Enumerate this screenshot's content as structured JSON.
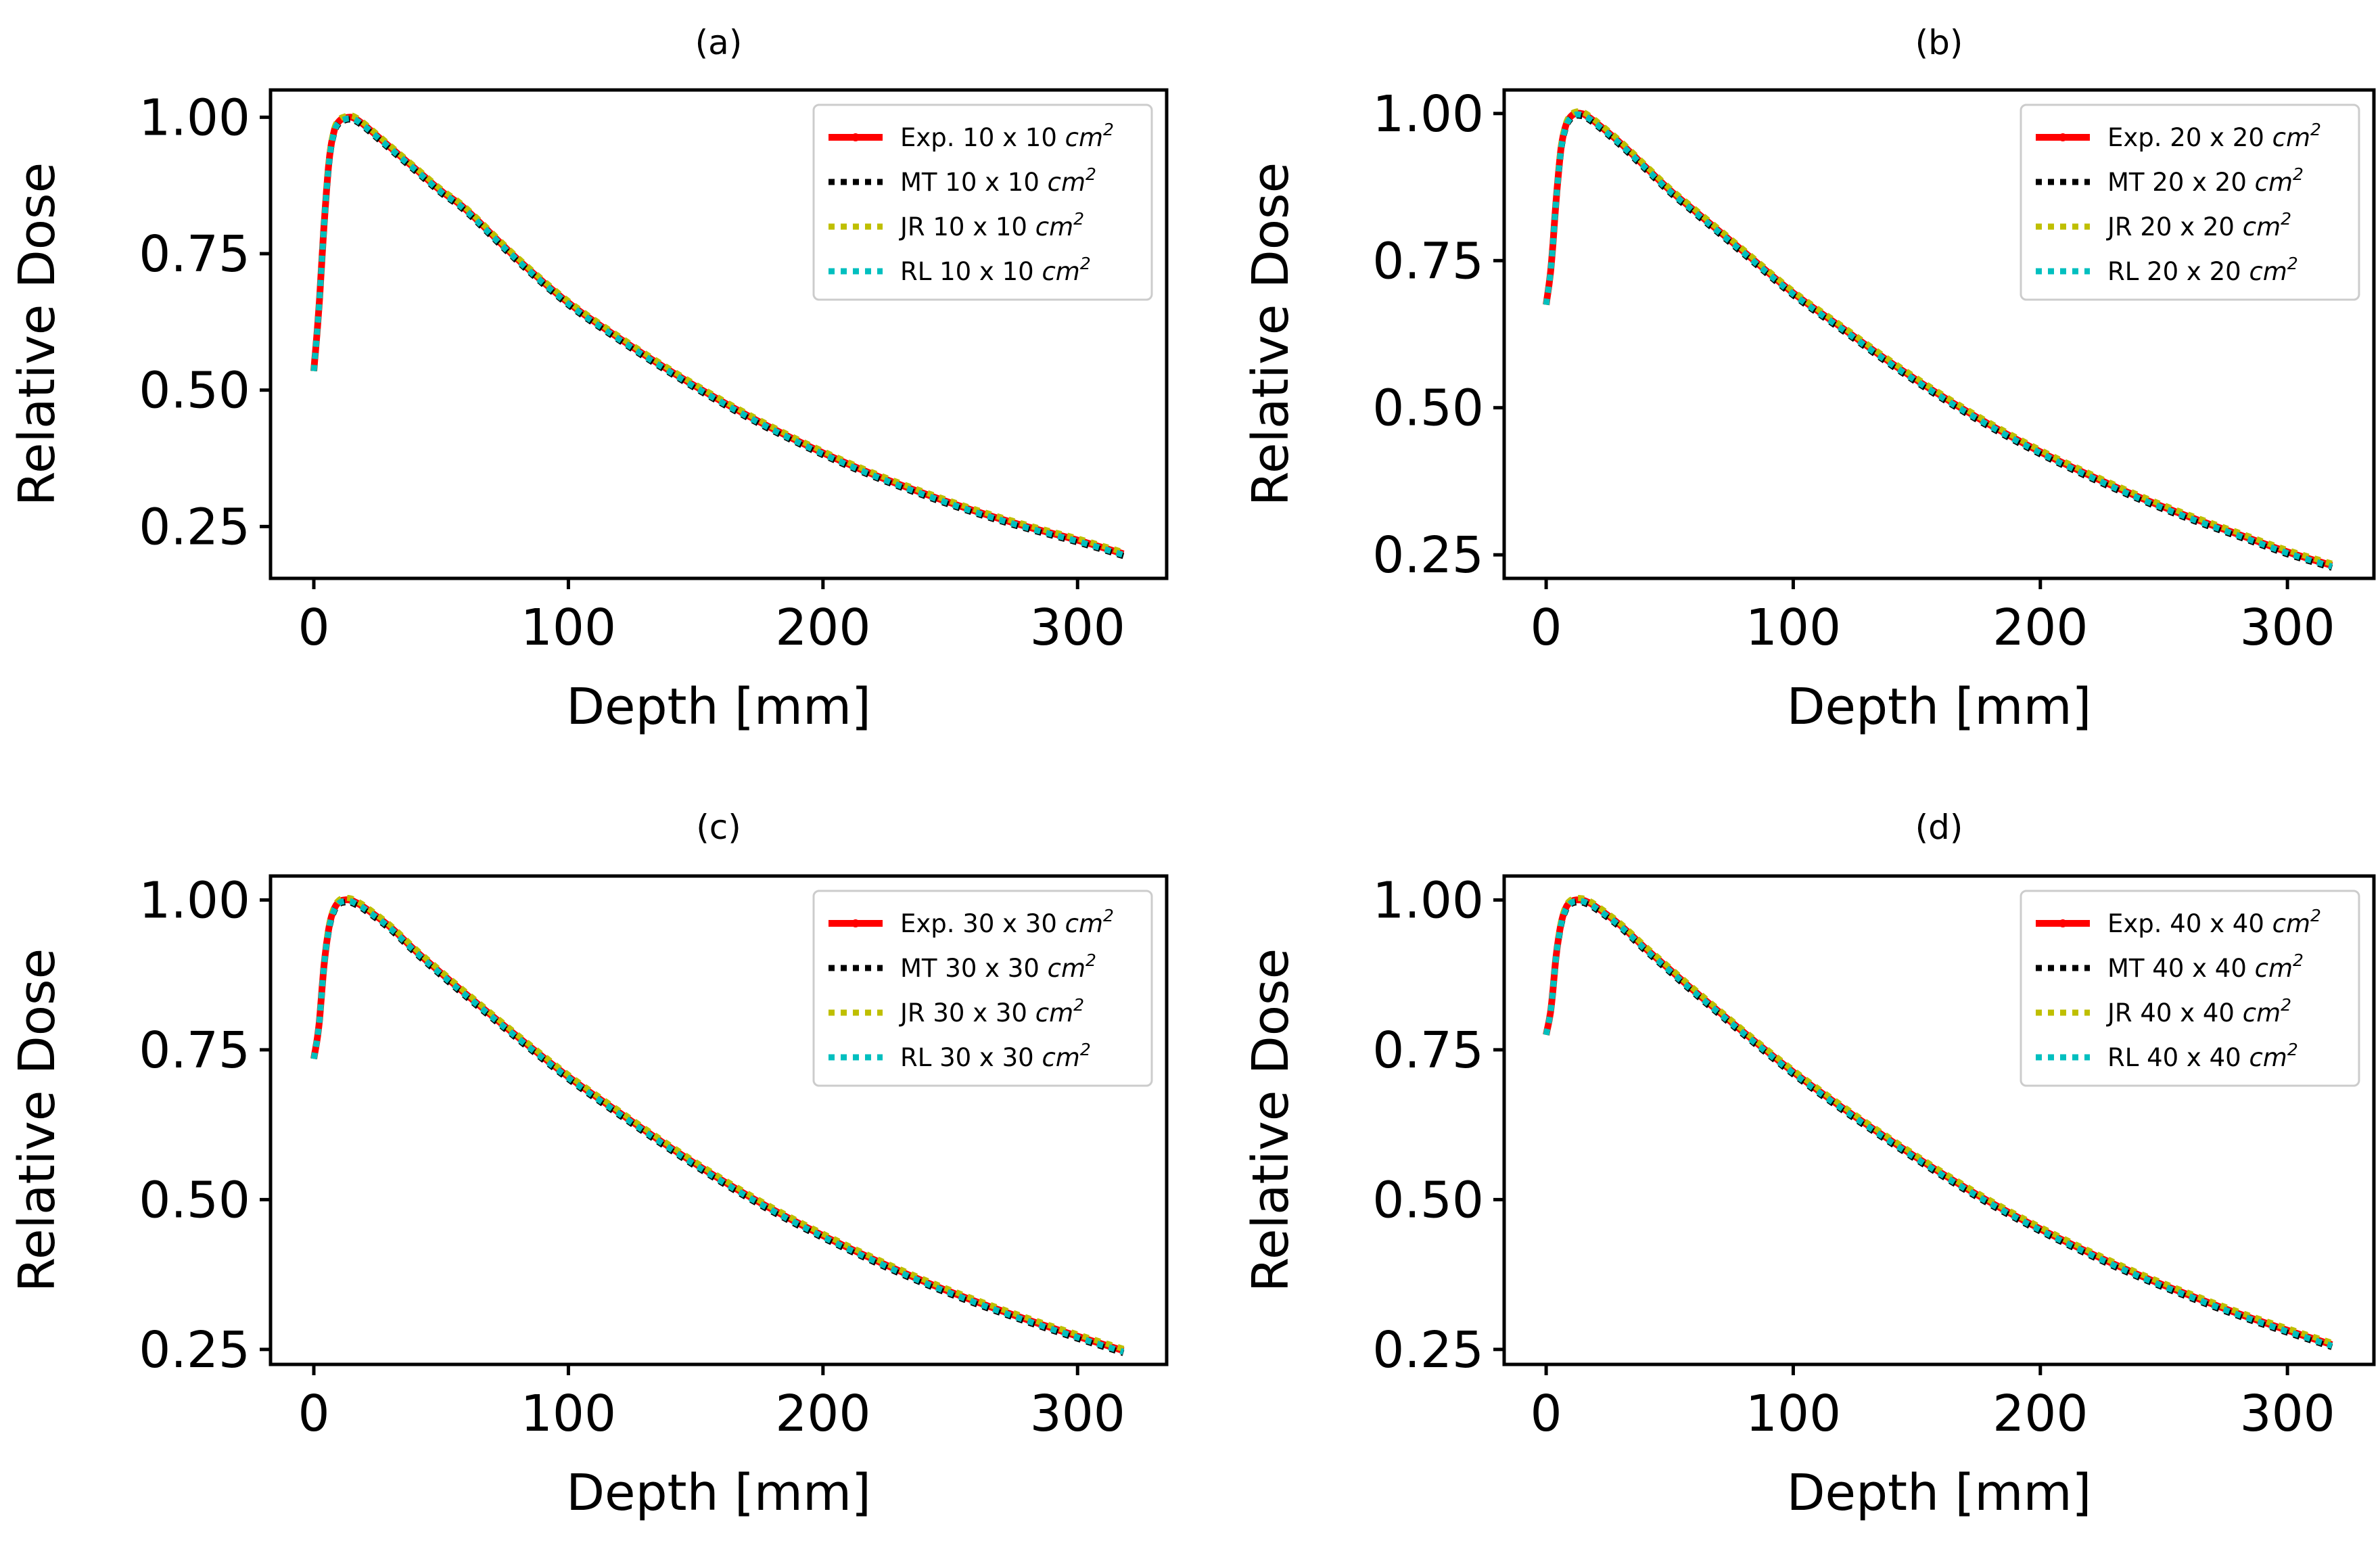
{
  "chart_data": [
    {
      "type": "line",
      "title": "(a)",
      "xlabel": "Depth [mm]",
      "ylabel": "Relative Dose",
      "xlim": [
        -17,
        335
      ],
      "ylim": [
        0.155,
        1.05
      ],
      "xticks": [
        0,
        100,
        200,
        300
      ],
      "yticks": [
        0.25,
        0.5,
        0.75,
        1.0
      ],
      "xtick_labels": [
        "0",
        "100",
        "200",
        "300"
      ],
      "ytick_labels": [
        "0.25",
        "0.50",
        "0.75",
        "1.00"
      ],
      "grid": false,
      "legend_position": "top-right",
      "field_size": "10 x 10",
      "unit": "cm",
      "unit_exp": "2",
      "series": [
        {
          "name": "Exp.",
          "label": "Exp. 10 x 10",
          "color": "#ff0000",
          "style": "solid-marker"
        },
        {
          "name": "MT",
          "label": "MT 10 x 10",
          "color": "#000000",
          "style": "dotted"
        },
        {
          "name": "JR",
          "label": "JR 10 x 10",
          "color": "#bfbf00",
          "style": "dotted"
        },
        {
          "name": "RL",
          "label": "RL 10 x 10",
          "color": "#00bfbf",
          "style": "dotted"
        }
      ],
      "x": [
        0,
        2,
        4,
        6,
        8,
        10,
        12,
        14,
        16,
        20,
        30,
        40,
        50,
        60,
        80,
        100,
        120,
        140,
        160,
        180,
        200,
        220,
        240,
        260,
        280,
        300,
        318
      ],
      "values": [
        0.535,
        0.65,
        0.8,
        0.92,
        0.975,
        0.993,
        0.998,
        1.0,
        0.998,
        0.985,
        0.945,
        0.905,
        0.865,
        0.83,
        0.74,
        0.66,
        0.595,
        0.535,
        0.48,
        0.43,
        0.385,
        0.345,
        0.31,
        0.278,
        0.25,
        0.225,
        0.2
      ]
    },
    {
      "type": "line",
      "title": "(b)",
      "xlabel": "Depth [mm]",
      "ylabel": "Relative Dose",
      "xlim": [
        -17,
        335
      ],
      "ylim": [
        0.21,
        1.04
      ],
      "xticks": [
        0,
        100,
        200,
        300
      ],
      "yticks": [
        0.25,
        0.5,
        0.75,
        1.0
      ],
      "xtick_labels": [
        "0",
        "100",
        "200",
        "300"
      ],
      "ytick_labels": [
        "0.25",
        "0.50",
        "0.75",
        "1.00"
      ],
      "grid": false,
      "legend_position": "top-right",
      "field_size": "20 x 20",
      "unit": "cm",
      "unit_exp": "2",
      "series": [
        {
          "name": "Exp.",
          "label": "Exp. 20 x 20",
          "color": "#ff0000",
          "style": "solid-marker"
        },
        {
          "name": "MT",
          "label": "MT 20 x 20",
          "color": "#000000",
          "style": "dotted"
        },
        {
          "name": "JR",
          "label": "JR 20 x 20",
          "color": "#bfbf00",
          "style": "dotted"
        },
        {
          "name": "RL",
          "label": "RL 20 x 20",
          "color": "#00bfbf",
          "style": "dotted"
        }
      ],
      "x": [
        0,
        2,
        4,
        6,
        8,
        10,
        12,
        14,
        16,
        20,
        30,
        40,
        50,
        60,
        80,
        100,
        120,
        140,
        160,
        180,
        200,
        220,
        240,
        260,
        280,
        300,
        318
      ],
      "values": [
        0.675,
        0.74,
        0.85,
        0.94,
        0.98,
        0.995,
        1.0,
        1.0,
        0.997,
        0.985,
        0.95,
        0.91,
        0.87,
        0.835,
        0.765,
        0.695,
        0.635,
        0.575,
        0.52,
        0.47,
        0.425,
        0.385,
        0.348,
        0.315,
        0.285,
        0.255,
        0.232
      ]
    },
    {
      "type": "line",
      "title": "(c)",
      "xlabel": "Depth [mm]",
      "ylabel": "Relative Dose",
      "xlim": [
        -17,
        335
      ],
      "ylim": [
        0.225,
        1.04
      ],
      "xticks": [
        0,
        100,
        200,
        300
      ],
      "yticks": [
        0.25,
        0.5,
        0.75,
        1.0
      ],
      "xtick_labels": [
        "0",
        "100",
        "200",
        "300"
      ],
      "ytick_labels": [
        "0.25",
        "0.50",
        "0.75",
        "1.00"
      ],
      "grid": false,
      "legend_position": "top-right",
      "field_size": "30 x 30",
      "unit": "cm",
      "unit_exp": "2",
      "series": [
        {
          "name": "Exp.",
          "label": "Exp. 30 x 30",
          "color": "#ff0000",
          "style": "solid-marker"
        },
        {
          "name": "MT",
          "label": "MT 30 x 30",
          "color": "#000000",
          "style": "dotted"
        },
        {
          "name": "JR",
          "label": "JR 30 x 30",
          "color": "#bfbf00",
          "style": "dotted"
        },
        {
          "name": "RL",
          "label": "RL 30 x 30",
          "color": "#00bfbf",
          "style": "dotted"
        }
      ],
      "x": [
        0,
        2,
        4,
        6,
        8,
        10,
        12,
        14,
        16,
        20,
        30,
        40,
        50,
        60,
        80,
        100,
        120,
        140,
        160,
        180,
        200,
        220,
        240,
        260,
        280,
        300,
        318
      ],
      "values": [
        0.735,
        0.79,
        0.89,
        0.955,
        0.985,
        0.997,
        1.0,
        1.0,
        0.997,
        0.987,
        0.955,
        0.915,
        0.878,
        0.842,
        0.772,
        0.705,
        0.645,
        0.587,
        0.533,
        0.484,
        0.44,
        0.4,
        0.363,
        0.33,
        0.3,
        0.272,
        0.248
      ]
    },
    {
      "type": "line",
      "title": "(d)",
      "xlabel": "Depth [mm]",
      "ylabel": "Relative Dose",
      "xlim": [
        -17,
        335
      ],
      "ylim": [
        0.225,
        1.04
      ],
      "xticks": [
        0,
        100,
        200,
        300
      ],
      "yticks": [
        0.25,
        0.5,
        0.75,
        1.0
      ],
      "xtick_labels": [
        "0",
        "100",
        "200",
        "300"
      ],
      "ytick_labels": [
        "0.25",
        "0.50",
        "0.75",
        "1.00"
      ],
      "grid": false,
      "legend_position": "top-right",
      "field_size": "40 x 40",
      "unit": "cm",
      "unit_exp": "2",
      "series": [
        {
          "name": "Exp.",
          "label": "Exp. 40 x 40",
          "color": "#ff0000",
          "style": "solid-marker"
        },
        {
          "name": "MT",
          "label": "MT 40 x 40",
          "color": "#000000",
          "style": "dotted"
        },
        {
          "name": "JR",
          "label": "JR 40 x 40",
          "color": "#bfbf00",
          "style": "dotted"
        },
        {
          "name": "RL",
          "label": "RL 40 x 40",
          "color": "#00bfbf",
          "style": "dotted"
        }
      ],
      "x": [
        0,
        2,
        4,
        6,
        8,
        10,
        12,
        14,
        16,
        20,
        30,
        40,
        50,
        60,
        80,
        100,
        120,
        140,
        160,
        180,
        200,
        220,
        240,
        260,
        280,
        300,
        318
      ],
      "values": [
        0.775,
        0.82,
        0.905,
        0.96,
        0.987,
        0.997,
        1.0,
        1.0,
        0.998,
        0.989,
        0.958,
        0.92,
        0.884,
        0.848,
        0.779,
        0.713,
        0.653,
        0.597,
        0.544,
        0.495,
        0.451,
        0.411,
        0.374,
        0.341,
        0.31,
        0.282,
        0.258
      ]
    }
  ]
}
